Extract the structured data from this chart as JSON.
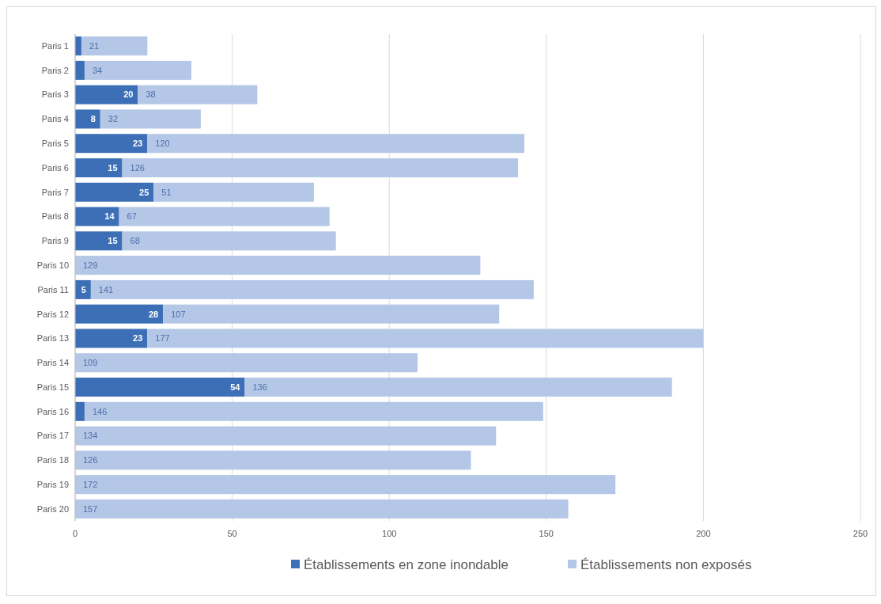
{
  "chart_data": {
    "type": "bar",
    "orientation": "horizontal",
    "stacked": true,
    "categories": [
      "Paris 1",
      "Paris 2",
      "Paris 3",
      "Paris 4",
      "Paris 5",
      "Paris 6",
      "Paris 7",
      "Paris 8",
      "Paris 9",
      "Paris 10",
      "Paris 11",
      "Paris 12",
      "Paris 13",
      "Paris 14",
      "Paris 15",
      "Paris 16",
      "Paris 17",
      "Paris 18",
      "Paris 19",
      "Paris 20"
    ],
    "series": [
      {
        "name": "Établissements en zone inondable",
        "color": "#3d6fb6",
        "values": [
          2,
          3,
          20,
          8,
          23,
          15,
          25,
          14,
          15,
          0,
          5,
          28,
          23,
          0,
          54,
          3,
          0,
          0,
          0,
          0
        ],
        "value_labels": [
          null,
          null,
          "20",
          "8",
          "23",
          "15",
          "25",
          "14",
          "15",
          null,
          "5",
          "28",
          "23",
          null,
          "54",
          null,
          null,
          null,
          null,
          null
        ]
      },
      {
        "name": "Établissements non exposés",
        "color": "#b4c7e7",
        "values": [
          21,
          34,
          38,
          32,
          120,
          126,
          51,
          67,
          68,
          129,
          141,
          107,
          177,
          109,
          136,
          146,
          134,
          126,
          172,
          157
        ],
        "value_labels": [
          "21",
          "34",
          "38",
          "32",
          "120",
          "126",
          "51",
          "67",
          "68",
          "129",
          "141",
          "107",
          "177",
          "109",
          "136",
          "146",
          "134",
          "126",
          "172",
          "157"
        ]
      }
    ],
    "xlim": [
      0,
      250
    ],
    "xticks": [
      0,
      50,
      100,
      150,
      200,
      250
    ],
    "grid": "x",
    "legend": "bottom"
  }
}
